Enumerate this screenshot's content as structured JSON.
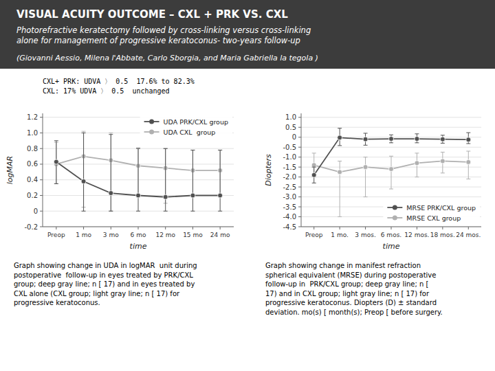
{
  "title": "VISUAL ACUITY OUTCOME – CXL + PRK VS. CXL",
  "subtitle": "Photorefractive keratectomy followed by cross-linking versus cross-linking\nalone for management of progressive keratoconus- two-years follow-up",
  "annotations": [
    "(Giovanni Aessio, Milena l'Abbate, Carlo Sborgia, and Maria Gabriella la tegola )"
  ],
  "chart_data": [
    {
      "type": "line",
      "xlabel": "time",
      "ylabel": "logMAR",
      "categories": [
        "Preop",
        "1 mo",
        "3 mo",
        "6 mo",
        "12 mo",
        "15 mo",
        "24 mo"
      ],
      "ylim": [
        -0.2,
        1.25
      ],
      "yticks": [
        -0.2,
        0,
        0.2,
        0.4,
        0.6,
        0.8,
        {
          "value": 1,
          "label": "1.0"
        },
        1.2
      ],
      "grid": true,
      "legend": "upper right",
      "annotations": [
        "CXL+ PRK: UDVA 〉 0.5  17.6% to 82.3%\nCXL: 17% UDVA 〉 0.5  unchanged"
      ],
      "caption": "Graph showing change in UDA in logMAR  unit during\npostoperative  follow-up in eyes treated by PRK/CXL\ngroup; deep gray line; n [ 17) and in eyes treated by\nCXL alone (CXL group; light gray line; n [ 17) for\nprogressive keratoconus.",
      "series": [
        {
          "name": "UDA PRK/CXL group",
          "color": "#505050",
          "marker": "circle",
          "values": [
            0.63,
            0.38,
            0.23,
            0.2,
            0.18,
            0.2,
            0.2
          ],
          "errors_low": [
            0.28,
            0.38,
            0.23,
            0.2,
            0.18,
            0.2,
            0.2
          ],
          "errors_high": [
            0.27,
            0.62,
            0.75,
            0.6,
            0.62,
            0.58,
            0.58
          ]
        },
        {
          "name": "UDA CXL  group",
          "color": "#b0b0b0",
          "marker": "circle",
          "values": [
            0.6,
            0.7,
            0.65,
            0.58,
            0.55,
            0.52,
            0.52
          ],
          "errors_low": [
            0.25,
            0.65,
            0.65,
            0.38,
            0.45,
            0.32,
            0.32
          ],
          "errors_high": [
            0.28,
            0.32,
            0.35,
            0.23,
            0.25,
            0.26,
            0.26
          ]
        }
      ]
    },
    {
      "type": "line",
      "xlabel": "time",
      "ylabel": "Diopters",
      "categories": [
        "Preop",
        "1 mo.",
        "3 mos.",
        "6 mos.",
        "12 mos.",
        "18 mos.",
        "24 mos."
      ],
      "ylim": [
        -4.5,
        1.2
      ],
      "yticks": [
        -4.5,
        {
          "value": -4,
          "label": "-4.0"
        },
        -3.5,
        {
          "value": -3,
          "label": "-3.0"
        },
        -2.5,
        {
          "value": -2,
          "label": "-2.0"
        },
        -1.5,
        {
          "value": -1,
          "label": "-1.0"
        },
        -0.5,
        0,
        0.5,
        {
          "value": 1,
          "label": "1.0"
        }
      ],
      "grid": true,
      "legend": "lower right",
      "caption": "Graph showing change in manifest refraction\nspherical equivalent (MRSE) during postoperative\nfollow-up in  PRK/CXL group; deep gray line; n [\n17) and in CXL group; light gray line; n [ 17) for\nprogressive keratoconus. Diopters (D) ± standard\ndeviation. mo(s) [ month(s); Preop [ before surgery.",
      "series": [
        {
          "name": "MRSE PRK/CXL group",
          "color": "#505050",
          "marker": "circle",
          "values": [
            -1.9,
            -0.02,
            -0.1,
            -0.08,
            -0.08,
            -0.1,
            -0.12
          ],
          "errors_low": [
            0.4,
            0.4,
            0.3,
            0.2,
            0.2,
            0.2,
            0.2
          ],
          "errors_high": [
            0.4,
            0.47,
            0.3,
            0.2,
            0.25,
            0.2,
            0.35
          ]
        },
        {
          "name": "MRSE CXL group",
          "color": "#b0b0b0",
          "marker": "circle",
          "values": [
            -1.4,
            -1.75,
            -1.5,
            -1.6,
            -1.3,
            -1.2,
            -1.25
          ],
          "errors_low": [
            0.6,
            2.25,
            1.5,
            1.0,
            0.7,
            0.6,
            0.85
          ],
          "errors_high": [
            0.6,
            0.55,
            0.5,
            0.65,
            0.5,
            0.45,
            0.55
          ]
        }
      ]
    }
  ]
}
